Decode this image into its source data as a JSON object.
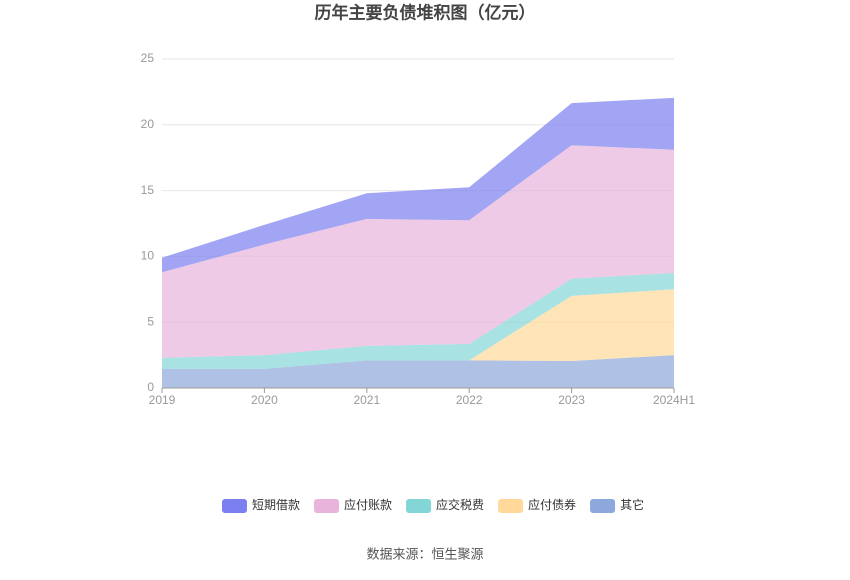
{
  "chart_data": {
    "type": "stacked_area",
    "title": "历年主要负债堆积图（亿元）",
    "categories": [
      "2019",
      "2020",
      "2021",
      "2022",
      "2023",
      "2024H1"
    ],
    "series": [
      {
        "name": "其它",
        "color": "#8da8dc",
        "values": [
          1.45,
          1.45,
          2.1,
          2.1,
          2.05,
          2.5
        ]
      },
      {
        "name": "应付债券",
        "color": "#ffd89a",
        "values": [
          0,
          0,
          0,
          0,
          4.95,
          5.0
        ]
      },
      {
        "name": "应交税费",
        "color": "#84d6d6",
        "values": [
          0.85,
          1.05,
          1.1,
          1.25,
          1.3,
          1.25
        ]
      },
      {
        "name": "应付账款",
        "color": "#e8b4dc",
        "values": [
          6.5,
          8.4,
          9.65,
          9.4,
          10.15,
          9.35
        ]
      },
      {
        "name": "短期借款",
        "color": "#7b7ff0",
        "values": [
          1.1,
          1.5,
          1.95,
          2.5,
          3.2,
          3.95
        ]
      }
    ],
    "ylim": [
      0,
      25
    ],
    "yticks": [
      0,
      5,
      10,
      15,
      20,
      25
    ],
    "grid": true,
    "source": "数据来源：恒生聚源"
  }
}
